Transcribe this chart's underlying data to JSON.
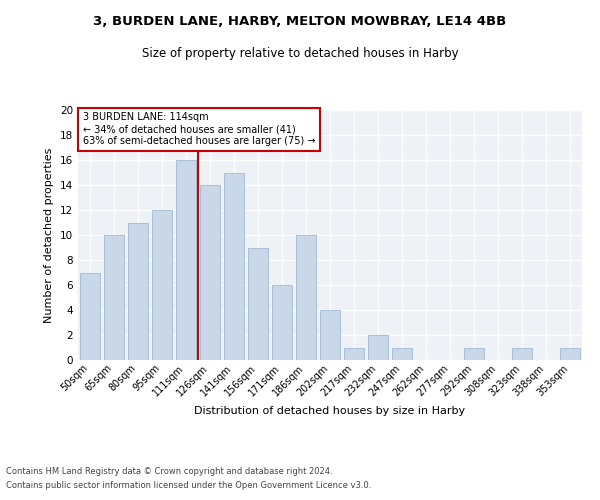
{
  "title1": "3, BURDEN LANE, HARBY, MELTON MOWBRAY, LE14 4BB",
  "title2": "Size of property relative to detached houses in Harby",
  "xlabel": "Distribution of detached houses by size in Harby",
  "ylabel": "Number of detached properties",
  "categories": [
    "50sqm",
    "65sqm",
    "80sqm",
    "95sqm",
    "111sqm",
    "126sqm",
    "141sqm",
    "156sqm",
    "171sqm",
    "186sqm",
    "202sqm",
    "217sqm",
    "232sqm",
    "247sqm",
    "262sqm",
    "277sqm",
    "292sqm",
    "308sqm",
    "323sqm",
    "338sqm",
    "353sqm"
  ],
  "values": [
    7,
    10,
    11,
    12,
    16,
    14,
    15,
    9,
    6,
    10,
    4,
    1,
    2,
    1,
    0,
    0,
    1,
    0,
    1,
    0,
    1
  ],
  "bar_color": "#c8d8e8",
  "bar_edgecolor": "#a0b8d0",
  "vline_x": 4.5,
  "vline_color": "#cc0000",
  "annotation_text": "3 BURDEN LANE: 114sqm\n← 34% of detached houses are smaller (41)\n63% of semi-detached houses are larger (75) →",
  "annotation_box_color": "#cc0000",
  "annotation_bg": "#ffffff",
  "footnote1": "Contains HM Land Registry data © Crown copyright and database right 2024.",
  "footnote2": "Contains public sector information licensed under the Open Government Licence v3.0.",
  "ylim": [
    0,
    20
  ],
  "yticks": [
    0,
    2,
    4,
    6,
    8,
    10,
    12,
    14,
    16,
    18,
    20
  ],
  "bg_color": "#eef2f7",
  "title1_fontsize": 9.5,
  "title2_fontsize": 8.5
}
